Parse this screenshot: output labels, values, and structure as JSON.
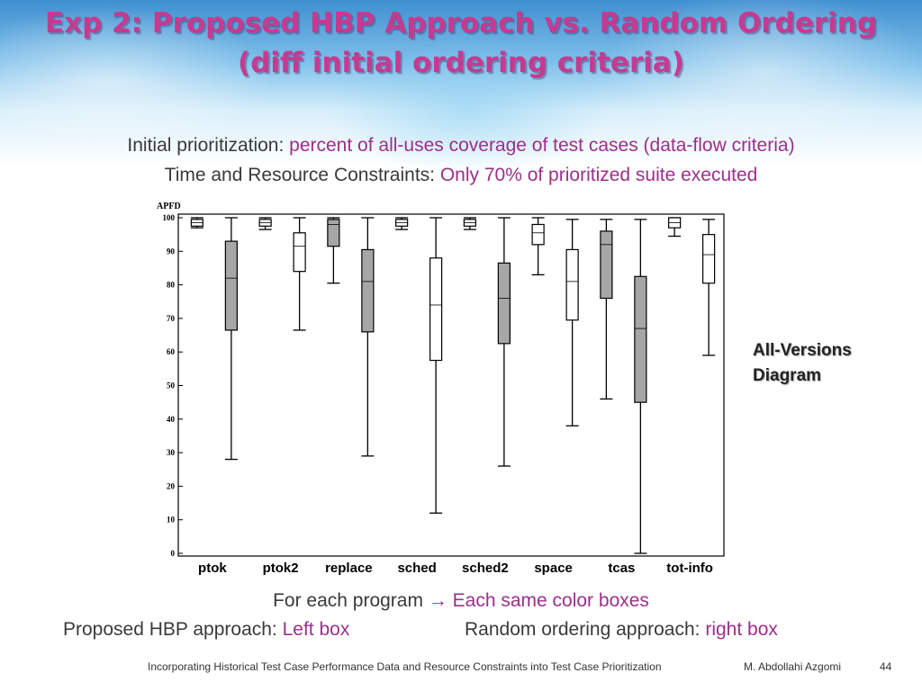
{
  "title": {
    "line1": "Exp 2: Proposed HBP Approach vs. Random Ordering",
    "line2": "(diff initial ordering criteria)"
  },
  "subtitle": {
    "line1_label": "Initial prioritization: ",
    "line1_value": "percent of all-uses coverage of test cases (data-flow criteria)",
    "line2_label": "Time and Resource Constraints: ",
    "line2_value": "Only 70% of prioritized suite executed"
  },
  "side_note": {
    "line1": "All-Versions",
    "line2": "Diagram"
  },
  "bottom": {
    "line1_label": "For each program ",
    "line1_arrow": "→",
    "line1_value": " Each same color boxes",
    "line2a_label": "Proposed HBP approach: ",
    "line2a_value": "Left box",
    "line2b_label": "Random ordering approach: ",
    "line2b_value": "right box"
  },
  "footer": {
    "text": "Incorporating Historical Test Case Performance Data and Resource Constraints into Test Case Prioritization",
    "author": "M. Abdollahi Azgomi",
    "page": "44"
  },
  "colors": {
    "title": "#c63a8f",
    "accent": "#9c2f8a",
    "box_gray": "#a6a6a6",
    "box_white": "#ffffff"
  },
  "chart_data": {
    "type": "boxplot",
    "title": "APFD",
    "ylim": [
      0,
      100
    ],
    "yticks": [
      0,
      10,
      20,
      30,
      40,
      50,
      60,
      70,
      80,
      90,
      100
    ],
    "categories": [
      "ptok",
      "ptok2",
      "replace",
      "sched",
      "sched2",
      "space",
      "tcas",
      "tot-info"
    ],
    "series": [
      {
        "name": "",
        "fill": "#ffffff",
        "stats": [
          {
            "min": 97,
            "q1": 97.5,
            "median": 98.5,
            "q3": 99.5,
            "max": 100
          },
          {
            "min": 96.5,
            "q1": 97.5,
            "median": 98.5,
            "q3": 99.5,
            "max": 100
          },
          {
            "min": 80.5,
            "q1": 91.5,
            "median": 98,
            "q3": 99.5,
            "max": 100
          },
          {
            "min": 96.5,
            "q1": 97.5,
            "median": 98.5,
            "q3": 99.5,
            "max": 100
          },
          {
            "min": 96.5,
            "q1": 97.5,
            "median": 98.5,
            "q3": 99.5,
            "max": 100
          },
          {
            "min": 83,
            "q1": 92,
            "median": 95.5,
            "q3": 98,
            "max": 100
          },
          {
            "min": 46,
            "q1": 76,
            "median": 92,
            "q3": 96,
            "max": 99.5
          },
          {
            "min": 94.5,
            "q1": 97,
            "median": 98.5,
            "q3": 100,
            "max": 100
          }
        ]
      },
      {
        "name": "",
        "fill": "#a6a6a6",
        "stats": [
          {
            "min": 28,
            "q1": 66.5,
            "median": 82,
            "q3": 93,
            "max": 100
          },
          {
            "min": 66.5,
            "q1": 84,
            "median": 91.5,
            "q3": 95.5,
            "max": 100
          },
          {
            "min": 29,
            "q1": 66,
            "median": 81,
            "q3": 90.5,
            "max": 100
          },
          {
            "min": 12,
            "q1": 57.5,
            "median": 74,
            "q3": 88,
            "max": 100
          },
          {
            "min": 26,
            "q1": 62.5,
            "median": 76,
            "q3": 86.5,
            "max": 100
          },
          {
            "min": 38,
            "q1": 69.5,
            "median": 81,
            "q3": 90.5,
            "max": 99.5
          },
          {
            "min": 0,
            "q1": 45,
            "median": 67,
            "q3": 82.5,
            "max": 99.5
          },
          {
            "min": 59,
            "q1": 80.5,
            "median": 89,
            "q3": 95,
            "max": 99.5
          }
        ]
      }
    ],
    "box_fills_by_category": [
      [
        "#ffffff",
        "#a6a6a6"
      ],
      [
        "#ffffff",
        "#ffffff"
      ],
      [
        "#a6a6a6",
        "#a6a6a6"
      ],
      [
        "#ffffff",
        "#ffffff"
      ],
      [
        "#ffffff",
        "#a6a6a6"
      ],
      [
        "#ffffff",
        "#ffffff"
      ],
      [
        "#a6a6a6",
        "#a6a6a6"
      ],
      [
        "#ffffff",
        "#ffffff"
      ]
    ],
    "grid": false,
    "legend": "none"
  }
}
